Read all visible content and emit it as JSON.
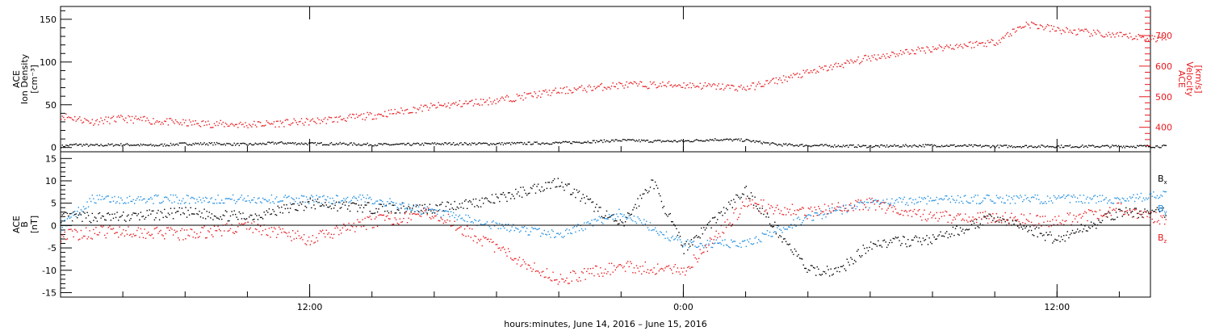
{
  "xaxis": {
    "label": "hours:minutes, June 14, 2016 – June 15, 2016",
    "range": [
      "2016-06-14T04:00",
      "2016-06-15T15:00"
    ],
    "tick_labels": [
      "12:00",
      "0:00",
      "12:00"
    ],
    "major_ticks": [
      "2016-06-14T12:00",
      "2016-06-15T00:00",
      "2016-06-15T12:00"
    ],
    "minor_tick_hours": 2
  },
  "panel1": {
    "left_label": [
      "ACE",
      "Ion Density",
      "[cm⁻³]"
    ],
    "right_label": [
      "ACE",
      "Velocity",
      "[km/s]"
    ],
    "left_ylim": [
      -5,
      165
    ],
    "left_ticks": [
      "0",
      "50",
      "100",
      "150"
    ],
    "right_ylim": [
      320,
      795
    ],
    "right_ticks": [
      "400",
      "500",
      "600",
      "700"
    ],
    "right_color": "#e8181c"
  },
  "panel2": {
    "left_label": [
      "ACE",
      "B",
      "[nT]"
    ],
    "ylim": [
      -16,
      16.5
    ],
    "ticks": [
      "15",
      "10",
      "5",
      "0",
      "-5",
      "-10",
      "-15"
    ],
    "legend": [
      {
        "label": "B",
        "sub": "x",
        "color": "#000000"
      },
      {
        "label": "B",
        "sub": "y",
        "color": "#1f8ee0"
      },
      {
        "label": "B",
        "sub": "z",
        "color": "#e8181c"
      }
    ]
  },
  "chart_data": [
    {
      "type": "scatter",
      "title": "",
      "xlabel": "hours:minutes, June 14, 2016 – June 15, 2016",
      "ylabel": "ACE Ion Density [cm⁻³]",
      "ylim": [
        -5,
        165
      ],
      "series": [
        {
          "color": "#000000",
          "x_hours": [
            0,
            0.5,
            1,
            2,
            3,
            4,
            5,
            6,
            7,
            8,
            9,
            10,
            11,
            12,
            14,
            16,
            18,
            19,
            20,
            21,
            22,
            23,
            24,
            26,
            28,
            30,
            32,
            34,
            35.5
          ],
          "values": [
            2,
            4,
            3,
            4,
            3,
            5,
            5,
            4,
            6,
            5,
            5,
            4,
            4,
            5,
            5,
            6,
            9,
            8,
            8,
            10,
            9,
            4,
            3,
            2,
            3,
            2,
            2,
            2,
            2
          ]
        }
      ]
    },
    {
      "type": "scatter",
      "ylabel": "ACE Velocity [km/s]",
      "ylim": [
        320,
        795
      ],
      "series": [
        {
          "color": "#e8181c",
          "x_hours": [
            0,
            1,
            2,
            4,
            6,
            8,
            10,
            12,
            14,
            16,
            18,
            20,
            22,
            24,
            26,
            28,
            30,
            31,
            32,
            34,
            35.5
          ],
          "values": [
            440,
            420,
            430,
            415,
            410,
            420,
            440,
            470,
            490,
            520,
            540,
            540,
            530,
            580,
            630,
            660,
            680,
            740,
            720,
            700,
            690
          ]
        }
      ]
    },
    {
      "type": "scatter",
      "ylabel": "ACE B [nT]",
      "ylim": [
        -16,
        16.5
      ],
      "series": [
        {
          "name": "Bx",
          "color": "#000000",
          "x_hours": [
            0,
            2,
            4,
            6,
            8,
            10,
            12,
            14,
            16,
            18,
            19,
            20,
            22,
            24,
            25,
            26,
            28,
            30,
            32,
            34,
            35.5
          ],
          "values": [
            2,
            2,
            3,
            2,
            5,
            4,
            4,
            6,
            10,
            0,
            10,
            -5,
            8,
            -10,
            -10,
            -4,
            -3,
            2,
            -3,
            3,
            3
          ]
        },
        {
          "name": "By",
          "color": "#1f8ee0",
          "x_hours": [
            0,
            1,
            2,
            4,
            6,
            8,
            10,
            12,
            14,
            16,
            18,
            20,
            22,
            24,
            26,
            28,
            30,
            32,
            34,
            35.5
          ],
          "values": [
            0,
            6,
            6,
            6,
            6,
            6,
            6,
            3,
            0,
            -2,
            3,
            -4,
            -4,
            2,
            5,
            6,
            6,
            6,
            6,
            7
          ]
        },
        {
          "name": "Bz",
          "color": "#e8181c",
          "x_hours": [
            0,
            2,
            4,
            6,
            8,
            10,
            12,
            14,
            16,
            18,
            20,
            22,
            24,
            26,
            28,
            30,
            32,
            34,
            35.5
          ],
          "values": [
            -2,
            -1,
            -2,
            0,
            -3,
            1,
            3,
            -5,
            -12,
            -9,
            -10,
            5,
            3,
            5,
            2,
            2,
            1,
            4,
            1
          ]
        }
      ]
    }
  ]
}
